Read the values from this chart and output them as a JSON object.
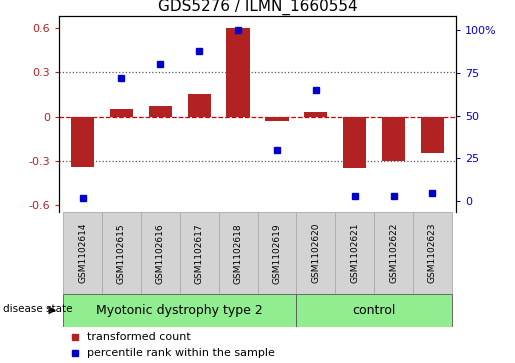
{
  "title": "GDS5276 / ILMN_1660554",
  "samples": [
    "GSM1102614",
    "GSM1102615",
    "GSM1102616",
    "GSM1102617",
    "GSM1102618",
    "GSM1102619",
    "GSM1102620",
    "GSM1102621",
    "GSM1102622",
    "GSM1102623"
  ],
  "red_bars": [
    -0.34,
    0.05,
    0.07,
    0.15,
    0.6,
    -0.03,
    0.03,
    -0.35,
    -0.3,
    -0.25
  ],
  "blue_squares": [
    2,
    72,
    80,
    88,
    100,
    30,
    65,
    3,
    3,
    5
  ],
  "ylim_left": [
    -0.65,
    0.68
  ],
  "ylim_right": [
    -6.5,
    108
  ],
  "yticks_left": [
    -0.6,
    -0.3,
    0.0,
    0.3,
    0.6
  ],
  "ytick_labels_left": [
    "-0.6",
    "-0.3",
    "0",
    "0.3",
    "0.6"
  ],
  "yticks_right": [
    0,
    25,
    50,
    75,
    100
  ],
  "ytick_labels_right": [
    "0",
    "25",
    "50",
    "75",
    "100%"
  ],
  "bar_color": "#b22222",
  "square_color": "#0000cc",
  "bar_width": 0.6,
  "group1_label": "Myotonic dystrophy type 2",
  "group2_label": "control",
  "group1_count": 6,
  "group2_count": 4,
  "disease_state_label": "disease state",
  "legend_red": "transformed count",
  "legend_blue": "percentile rank within the sample",
  "group_color": "#90ee90",
  "label_area_color": "#d3d3d3",
  "bg_color": "#ffffff",
  "zero_line_color": "#cc0000",
  "dotted_line_color": "#555555",
  "title_fontsize": 11,
  "tick_fontsize": 8,
  "sample_fontsize": 6.5,
  "group_fontsize": 9,
  "legend_fontsize": 8
}
